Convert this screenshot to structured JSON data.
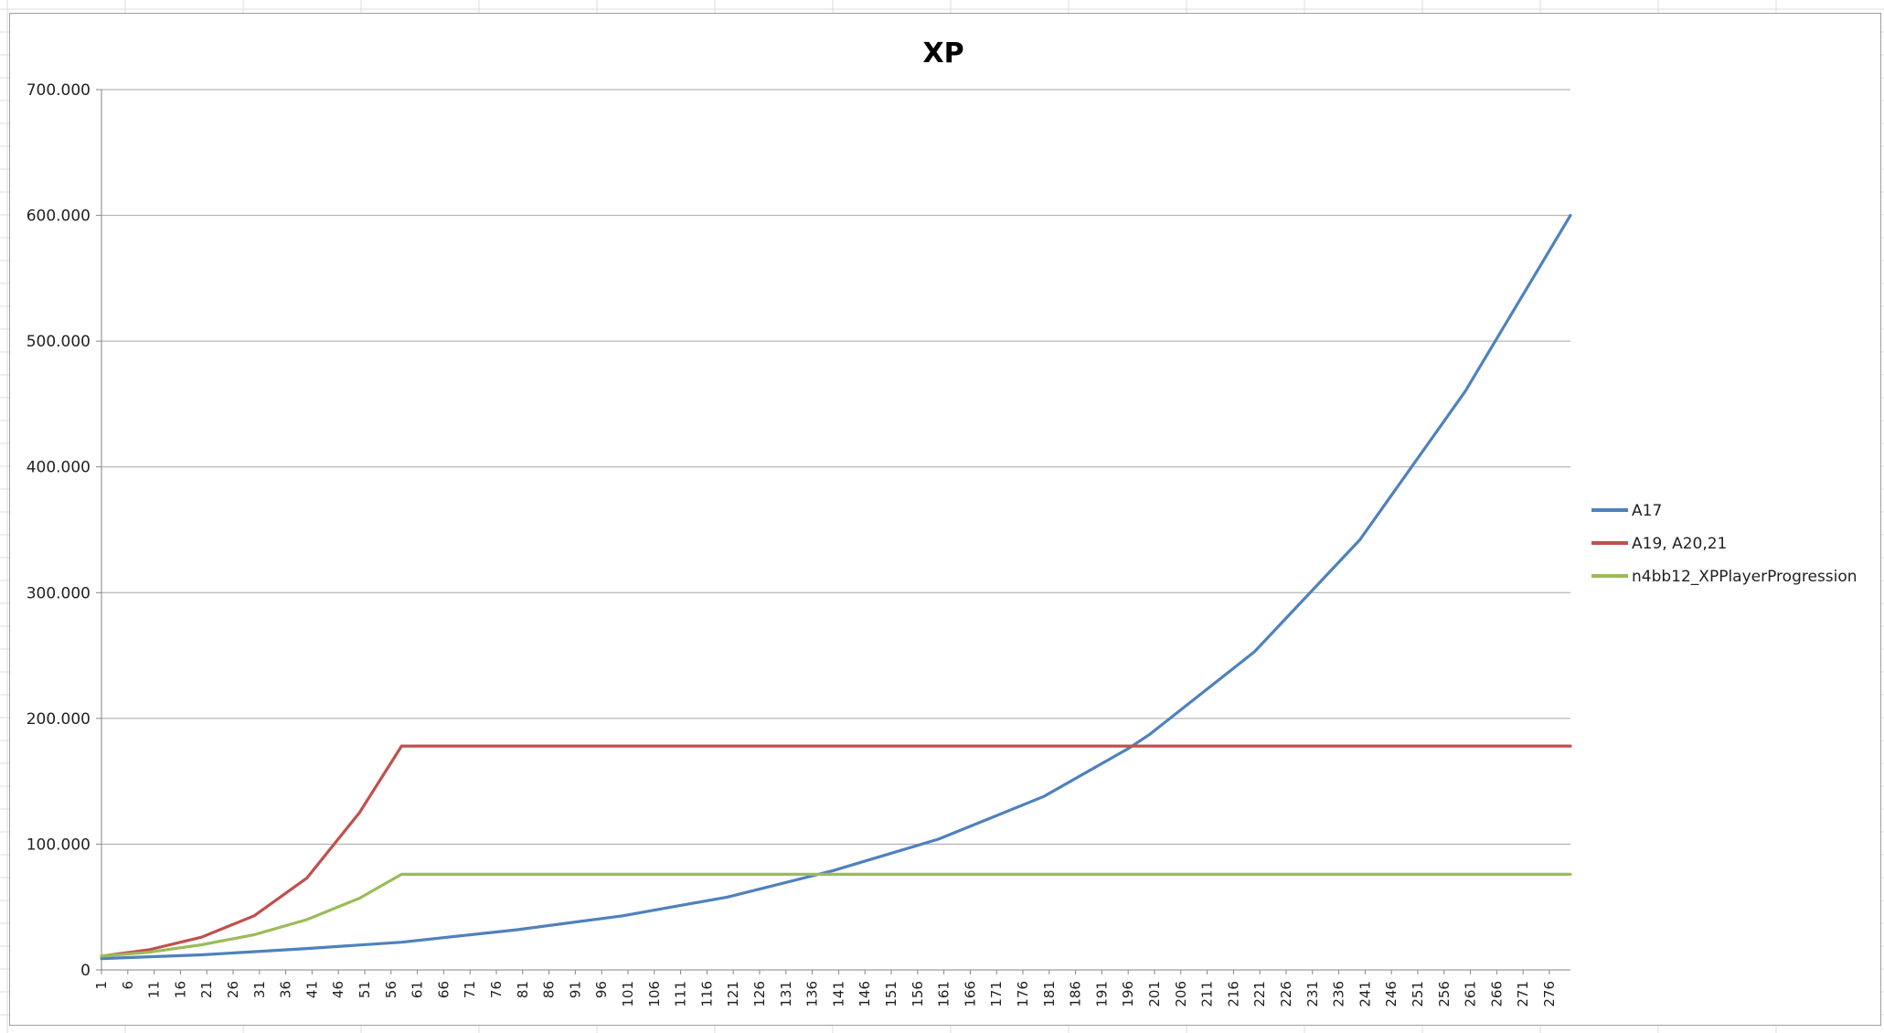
{
  "chart_data": {
    "type": "line",
    "title": "XP",
    "xlabel": "",
    "ylabel": "",
    "x_range": [
      1,
      280
    ],
    "x_tick_labels": [
      "1",
      "6",
      "11",
      "16",
      "21",
      "26",
      "31",
      "36",
      "41",
      "46",
      "51",
      "56",
      "61",
      "66",
      "71",
      "76",
      "81",
      "86",
      "91",
      "96",
      "101",
      "106",
      "111",
      "116",
      "121",
      "126",
      "131",
      "136",
      "141",
      "146",
      "151",
      "156",
      "161",
      "166",
      "171",
      "176",
      "181",
      "186",
      "191",
      "196",
      "201",
      "206",
      "211",
      "216",
      "221",
      "226",
      "231",
      "236",
      "241",
      "246",
      "251",
      "256",
      "261",
      "266",
      "271",
      "276"
    ],
    "y_tick_labels": [
      "0",
      "100.000",
      "200.000",
      "300.000",
      "400.000",
      "500.000",
      "600.000",
      "700.000"
    ],
    "ylim": [
      0,
      700000
    ],
    "grid": "horizontal",
    "legend_position": "right",
    "series": [
      {
        "name": "A17",
        "color": "#4f81bd",
        "points": [
          [
            1,
            9000
          ],
          [
            20,
            12000
          ],
          [
            40,
            17000
          ],
          [
            58,
            22000
          ],
          [
            80,
            32000
          ],
          [
            100,
            43000
          ],
          [
            120,
            58000
          ],
          [
            140,
            79000
          ],
          [
            160,
            104000
          ],
          [
            180,
            138000
          ],
          [
            196,
            176000
          ],
          [
            200,
            187000
          ],
          [
            220,
            253000
          ],
          [
            240,
            342000
          ],
          [
            260,
            460000
          ],
          [
            280,
            600000
          ]
        ]
      },
      {
        "name": "A19, A20,21",
        "color": "#c0504d",
        "points": [
          [
            1,
            11000
          ],
          [
            10,
            16000
          ],
          [
            20,
            26000
          ],
          [
            30,
            43000
          ],
          [
            40,
            73000
          ],
          [
            50,
            125000
          ],
          [
            58,
            178000
          ],
          [
            280,
            178000
          ]
        ]
      },
      {
        "name": "n4bb12_XPPlayerProgression",
        "color": "#9bbb59",
        "points": [
          [
            1,
            11000
          ],
          [
            10,
            14000
          ],
          [
            20,
            20000
          ],
          [
            30,
            28000
          ],
          [
            40,
            40000
          ],
          [
            50,
            57000
          ],
          [
            58,
            76000
          ],
          [
            280,
            76000
          ]
        ]
      }
    ]
  }
}
